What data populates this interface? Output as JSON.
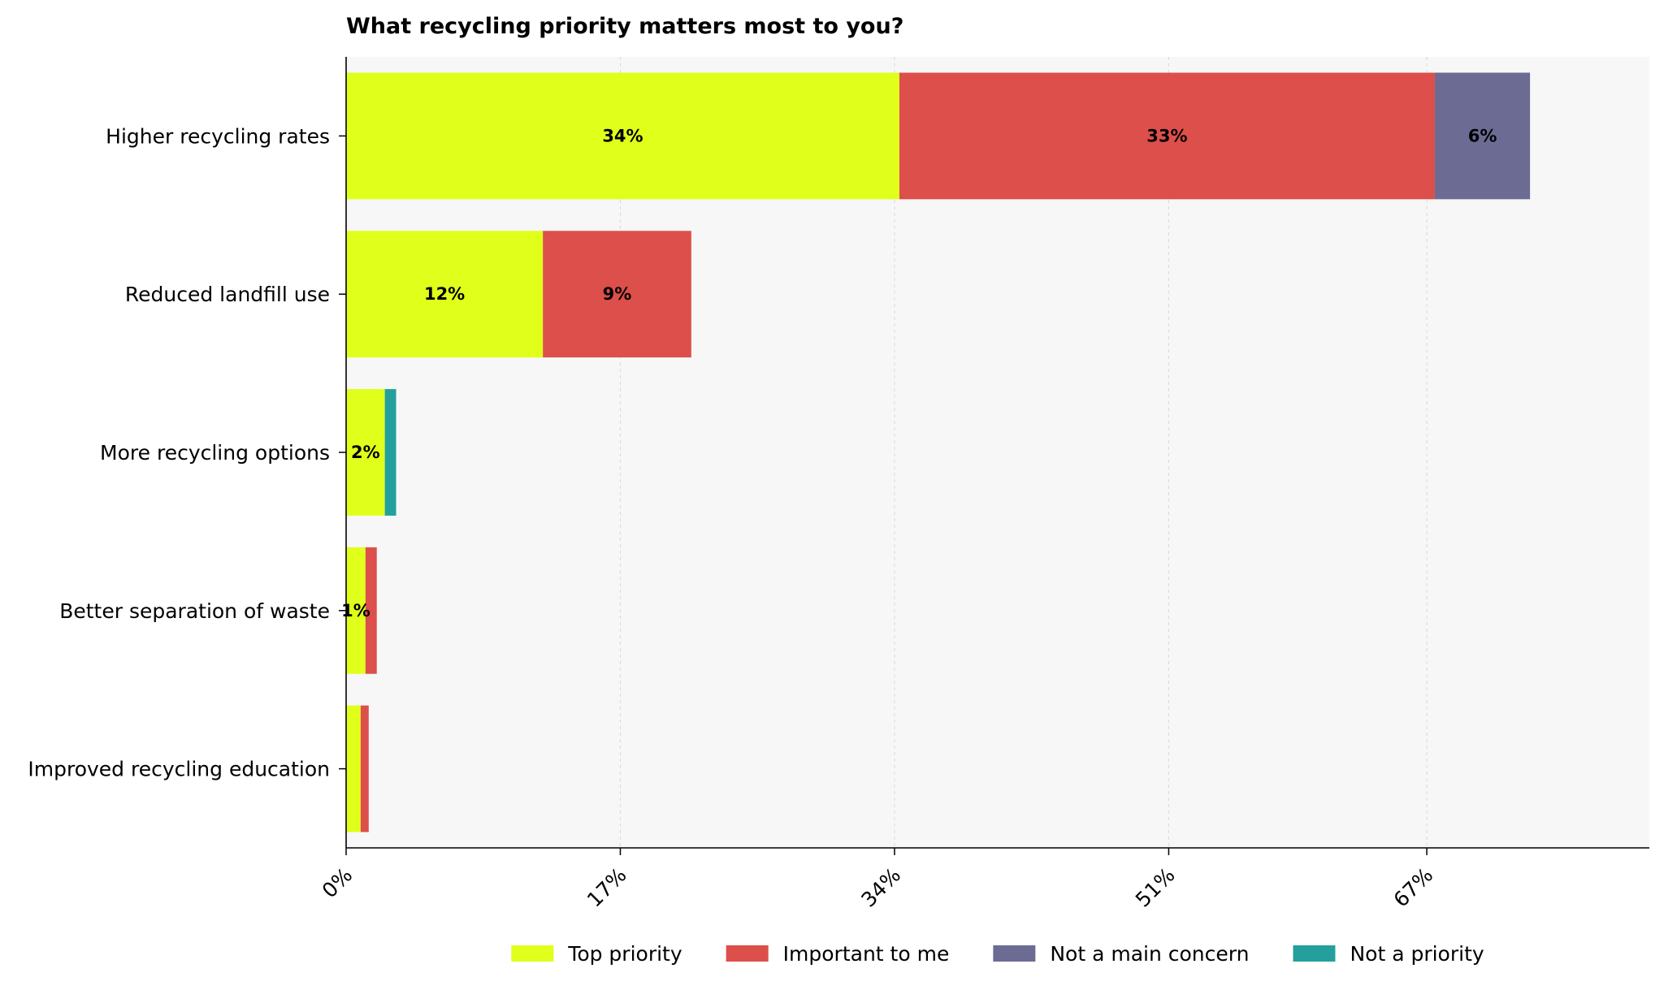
{
  "chart_data": {
    "type": "bar",
    "orientation": "horizontal",
    "stacked": true,
    "title": "What recycling priority matters most to you?",
    "xlabel": "",
    "ylabel": "",
    "xlim": [
      0,
      80.8
    ],
    "xticks": [
      0,
      17,
      34,
      51,
      67
    ],
    "xtick_labels": [
      "0%",
      "17%",
      "34%",
      "51%",
      "67%"
    ],
    "grid": true,
    "legend_position": "bottom",
    "categories": [
      "Higher recycling rates",
      "Reduced landfill use",
      "More recycling options",
      "Better separation of waste",
      "Improved recycling education"
    ],
    "series": [
      {
        "name": "Top priority",
        "color": "#e0ff1a",
        "values": [
          34.3,
          12.2,
          2.4,
          1.2,
          0.9
        ],
        "labels": [
          "34%",
          "12%",
          "2%",
          "1%",
          ""
        ]
      },
      {
        "name": "Important to me",
        "color": "#dd4f4a",
        "values": [
          33.2,
          9.2,
          0,
          0.7,
          0.5
        ],
        "labels": [
          "33%",
          "9%",
          "",
          "",
          ""
        ]
      },
      {
        "name": "Not a main concern",
        "color": "#6b6b94",
        "values": [
          5.9,
          0,
          0,
          0,
          0
        ],
        "labels": [
          "6%",
          "",
          "",
          "",
          ""
        ]
      },
      {
        "name": "Not a priority",
        "color": "#23a09c",
        "values": [
          0,
          0,
          0.7,
          0,
          0
        ],
        "labels": [
          "",
          "",
          "",
          "",
          ""
        ]
      }
    ]
  }
}
